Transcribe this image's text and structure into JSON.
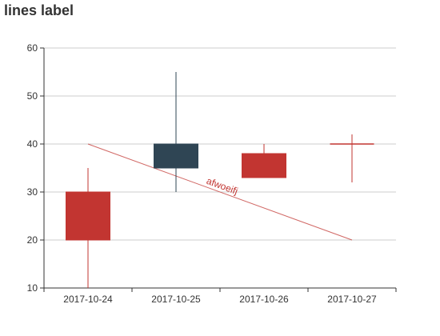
{
  "chart_data": {
    "type": "candlestick",
    "title": "lines label",
    "categories": [
      "2017-10-24",
      "2017-10-25",
      "2017-10-26",
      "2017-10-27"
    ],
    "series": [
      {
        "data": [
          {
            "open": 20,
            "close": 30,
            "low": 10,
            "high": 35
          },
          {
            "open": 40,
            "close": 35,
            "low": 30,
            "high": 55
          },
          {
            "open": 33,
            "close": 38,
            "low": 33,
            "high": 40
          },
          {
            "open": 40,
            "close": 40,
            "low": 32,
            "high": 42
          }
        ]
      }
    ],
    "ylim": [
      10,
      60
    ],
    "yticks": [
      10,
      20,
      30,
      40,
      50,
      60
    ],
    "grid": true,
    "colors": {
      "up": "#c23531",
      "down": "#2f4554",
      "line": "#c23531",
      "grid": "#cccccc",
      "axis": "#333333"
    },
    "lines": [
      {
        "label": "afwoeifj",
        "from": {
          "x": "2017-10-24",
          "y": 40
        },
        "to": {
          "x": "2017-10-27",
          "y": 20
        }
      }
    ]
  }
}
